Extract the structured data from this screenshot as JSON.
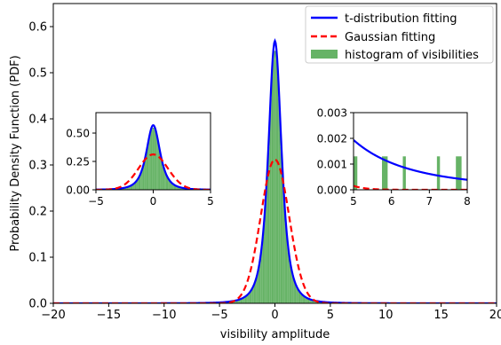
{
  "chart_data": [
    {
      "panel": "main",
      "type": "line",
      "title": "",
      "xlabel": "visibility amplitude",
      "ylabel": "Probability Density Function (PDF)",
      "xlim": [
        -20,
        20
      ],
      "ylim": [
        0.0,
        0.65
      ],
      "xticks": [
        "−20",
        "−15",
        "−10",
        "−5",
        "0",
        "5",
        "10",
        "15",
        "20"
      ],
      "yticks": [
        "0.0",
        "0.1",
        "0.2",
        "0.3",
        "0.4",
        "0.5",
        "0.6"
      ],
      "grid": false,
      "legend": {
        "placement": "top-right",
        "entries": [
          "t-distribution fitting",
          "Gaussian fitting",
          "histogram of visibilities"
        ]
      },
      "series": [
        {
          "name": "t-distribution fitting",
          "kind": "line",
          "color": "#0000ff",
          "style": "solid",
          "model": {
            "dist": "student-t",
            "loc": 0,
            "scale": 0.636,
            "df": 2.5
          }
        },
        {
          "name": "Gaussian fitting",
          "kind": "line",
          "color": "#ff0000",
          "style": "dashed",
          "model": {
            "dist": "normal",
            "mean": 0,
            "sigma": 1.28
          }
        },
        {
          "name": "histogram of visibilities",
          "kind": "bar",
          "color": "#66b366",
          "bin_width": 0.1,
          "peak": 0.55,
          "model": {
            "dist": "student-t",
            "loc": 0,
            "scale": 0.62,
            "df": 2.3
          }
        }
      ]
    },
    {
      "panel": "inset-left",
      "type": "line",
      "xlim": [
        -5,
        5
      ],
      "ylim": [
        0.0,
        0.68
      ],
      "xticks": [
        "−5",
        "0",
        "5"
      ],
      "yticks": [
        "0.00",
        "0.25",
        "0.50"
      ],
      "series_ref": "main"
    },
    {
      "panel": "inset-right",
      "type": "line",
      "xlim": [
        5,
        8
      ],
      "ylim": [
        0.0,
        0.003
      ],
      "xticks": [
        "5",
        "6",
        "7",
        "8"
      ],
      "yticks": [
        "0.000",
        "0.001",
        "0.002",
        "0.003"
      ],
      "series_ref": "main",
      "histogram_bins": [
        {
          "x0": 5.0,
          "x1": 5.1,
          "value": 0.0013
        },
        {
          "x0": 5.75,
          "x1": 5.9,
          "value": 0.0013
        },
        {
          "x0": 6.3,
          "x1": 6.38,
          "value": 0.0013
        },
        {
          "x0": 7.2,
          "x1": 7.28,
          "value": 0.0013
        },
        {
          "x0": 7.7,
          "x1": 7.85,
          "value": 0.0013
        }
      ]
    }
  ]
}
